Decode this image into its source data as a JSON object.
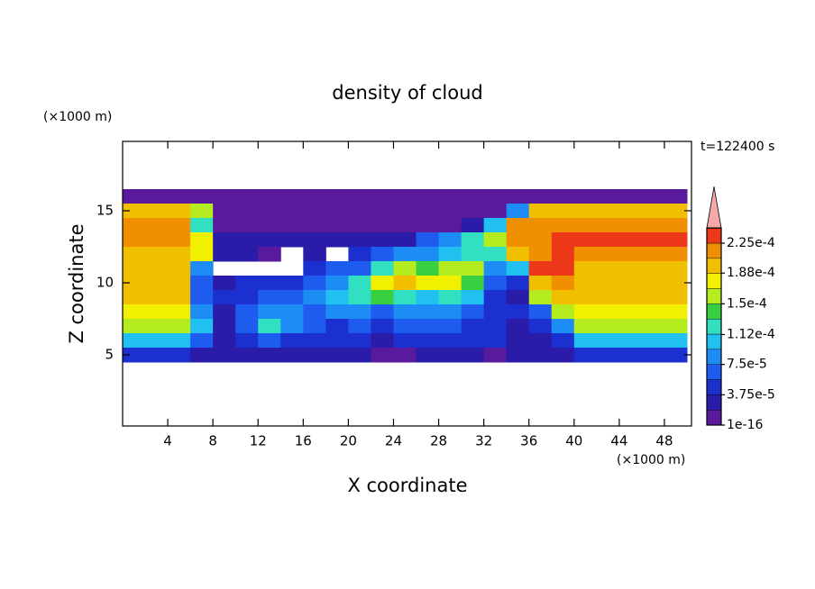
{
  "chart_data": {
    "type": "contour",
    "title": "density of cloud",
    "x_label": "X coordinate",
    "y_label": "Z coordinate",
    "x_unit": "(×1000 m)",
    "y_unit": "(×1000 m)",
    "annotation": "t=122400 s",
    "xlim": [
      0,
      50
    ],
    "ylim": [
      0,
      20
    ],
    "xticks": [
      4,
      8,
      12,
      16,
      20,
      24,
      28,
      32,
      36,
      40,
      44,
      48
    ],
    "yticks": [
      5,
      10,
      15
    ],
    "x": [
      1,
      3,
      5,
      7,
      9,
      11,
      13,
      15,
      17,
      19,
      21,
      23,
      25,
      27,
      29,
      31,
      33,
      35,
      37,
      39,
      41,
      43,
      45,
      47,
      49
    ],
    "y": [
      16,
      15,
      14,
      13,
      12,
      11,
      10,
      9,
      8,
      7,
      6,
      5
    ],
    "z": [
      [
        5e-06,
        5e-06,
        5e-06,
        5e-06,
        5e-06,
        5e-06,
        5e-06,
        5e-06,
        5e-06,
        5e-06,
        5e-06,
        5e-06,
        5e-06,
        5e-06,
        5e-06,
        5e-06,
        5e-06,
        5e-06,
        5e-06,
        5e-06,
        5e-06,
        5e-06,
        5e-06,
        5e-06,
        5e-06
      ],
      [
        0.0002,
        0.0002,
        0.0002,
        0.00015,
        5e-06,
        5e-06,
        5e-06,
        5e-06,
        5e-06,
        5e-06,
        5e-06,
        5e-06,
        5e-06,
        5e-06,
        5e-06,
        5e-06,
        1e-05,
        8e-05,
        0.0002,
        0.0002,
        0.0002,
        0.0002,
        0.0002,
        0.0002,
        0.0002
      ],
      [
        0.00021,
        0.00021,
        0.00021,
        0.00012,
        1e-05,
        1e-05,
        1e-05,
        1e-05,
        1e-05,
        1e-05,
        1e-05,
        1e-05,
        1e-05,
        1e-05,
        1e-05,
        2e-05,
        0.0001,
        0.00022,
        0.00022,
        0.00022,
        0.00022,
        0.00022,
        0.00022,
        0.00022,
        0.00022
      ],
      [
        0.00021,
        0.00021,
        0.00021,
        0.00018,
        2e-05,
        2e-05,
        2e-05,
        2e-05,
        2e-05,
        2e-05,
        2e-05,
        2e-05,
        3e-05,
        6e-05,
        9e-05,
        0.00012,
        0.00016,
        0.00022,
        0.00022,
        0.00023,
        0.00023,
        0.00023,
        0.00023,
        0.00023,
        0.00023
      ],
      [
        0.0002,
        0.0002,
        0.0002,
        0.00017,
        2e-05,
        2e-05,
        1e-05,
        null,
        3e-05,
        null,
        4e-05,
        6e-05,
        8e-05,
        9e-05,
        0.00011,
        0.00013,
        0.00012,
        0.00019,
        0.00022,
        0.00024,
        0.00021,
        0.00021,
        0.00021,
        0.00021,
        0.00021
      ],
      [
        0.0002,
        0.0002,
        0.0002,
        8e-05,
        null,
        null,
        null,
        null,
        5e-05,
        6e-05,
        7e-05,
        0.00012,
        0.00016,
        0.00014,
        0.00015,
        0.00016,
        9e-05,
        0.00011,
        0.00023,
        0.00024,
        0.0002,
        0.0002,
        0.0002,
        0.0002,
        0.0002
      ],
      [
        0.0002,
        0.0002,
        0.0002,
        6e-05,
        3e-05,
        4e-05,
        5e-05,
        4e-05,
        6e-05,
        8e-05,
        0.00013,
        0.00018,
        0.0002,
        0.00018,
        0.00017,
        0.00014,
        6e-05,
        5e-05,
        0.0002,
        0.00022,
        0.0002,
        0.0002,
        0.0002,
        0.0002,
        0.0002
      ],
      [
        0.00019,
        0.00019,
        0.00019,
        7e-05,
        4e-05,
        5e-05,
        6e-05,
        7e-05,
        9e-05,
        0.0001,
        0.00012,
        0.00014,
        0.00013,
        0.00011,
        0.00012,
        0.0001,
        4e-05,
        3e-05,
        0.00015,
        0.00019,
        0.00019,
        0.00019,
        0.00019,
        0.00019,
        0.00019
      ],
      [
        0.00018,
        0.00018,
        0.00018,
        8e-05,
        3e-05,
        6e-05,
        9e-05,
        8e-05,
        6e-05,
        8e-05,
        9e-05,
        7e-05,
        8e-05,
        9e-05,
        8e-05,
        7e-05,
        5e-05,
        4e-05,
        6e-05,
        0.00016,
        0.00018,
        0.00018,
        0.00018,
        0.00018,
        0.00018
      ],
      [
        0.00015,
        0.00015,
        0.00015,
        0.0001,
        3e-05,
        7e-05,
        0.00013,
        8e-05,
        6e-05,
        5e-05,
        7e-05,
        5e-05,
        6e-05,
        7e-05,
        6e-05,
        5e-05,
        4e-05,
        3e-05,
        4e-05,
        8e-05,
        0.00015,
        0.00015,
        0.00015,
        0.00015,
        0.00015
      ],
      [
        0.00011,
        0.00011,
        0.00011,
        6e-05,
        3e-05,
        5e-05,
        6e-05,
        5e-05,
        4e-05,
        4e-05,
        5e-05,
        3e-05,
        4e-05,
        5e-05,
        4e-05,
        5e-05,
        4e-05,
        3e-05,
        3e-05,
        5e-05,
        0.00011,
        0.00011,
        0.00011,
        0.00011,
        0.00011
      ],
      [
        5e-05,
        5e-05,
        5e-05,
        3e-05,
        2e-05,
        3e-05,
        2e-05,
        2e-05,
        3e-05,
        2e-05,
        2e-05,
        1e-05,
        1e-05,
        2e-05,
        2e-05,
        2e-05,
        1e-05,
        2e-05,
        2e-05,
        3e-05,
        5e-05,
        5e-05,
        5e-05,
        5e-05,
        5e-05
      ]
    ],
    "levels": [
      1e-16,
      1.875e-05,
      3.75e-05,
      5.625e-05,
      7.5e-05,
      9.375e-05,
      0.0001125,
      0.00013125,
      0.00015,
      0.00016875,
      0.0001875,
      0.00020625,
      0.000225,
      0.00024375
    ],
    "colors": [
      "#5a1a9e",
      "#2a1ca8",
      "#1c30d0",
      "#1e5cf0",
      "#1e8cf5",
      "#20c0f0",
      "#30e0c0",
      "#38d040",
      "#b4ec20",
      "#f0f000",
      "#f0c000",
      "#f09000",
      "#ec3818"
    ],
    "extend_color": "#f4a8a8",
    "colorbar_ticks": [
      {
        "value": 1e-16,
        "label": "1e-16"
      },
      {
        "value": 3.75e-05,
        "label": "3.75e-5"
      },
      {
        "value": 7.5e-05,
        "label": "7.5e-5"
      },
      {
        "value": 0.000112,
        "label": "1.12e-4"
      },
      {
        "value": 0.00015,
        "label": "1.5e-4"
      },
      {
        "value": 0.000188,
        "label": "1.88e-4"
      },
      {
        "value": 0.000225,
        "label": "2.25e-4"
      }
    ]
  }
}
